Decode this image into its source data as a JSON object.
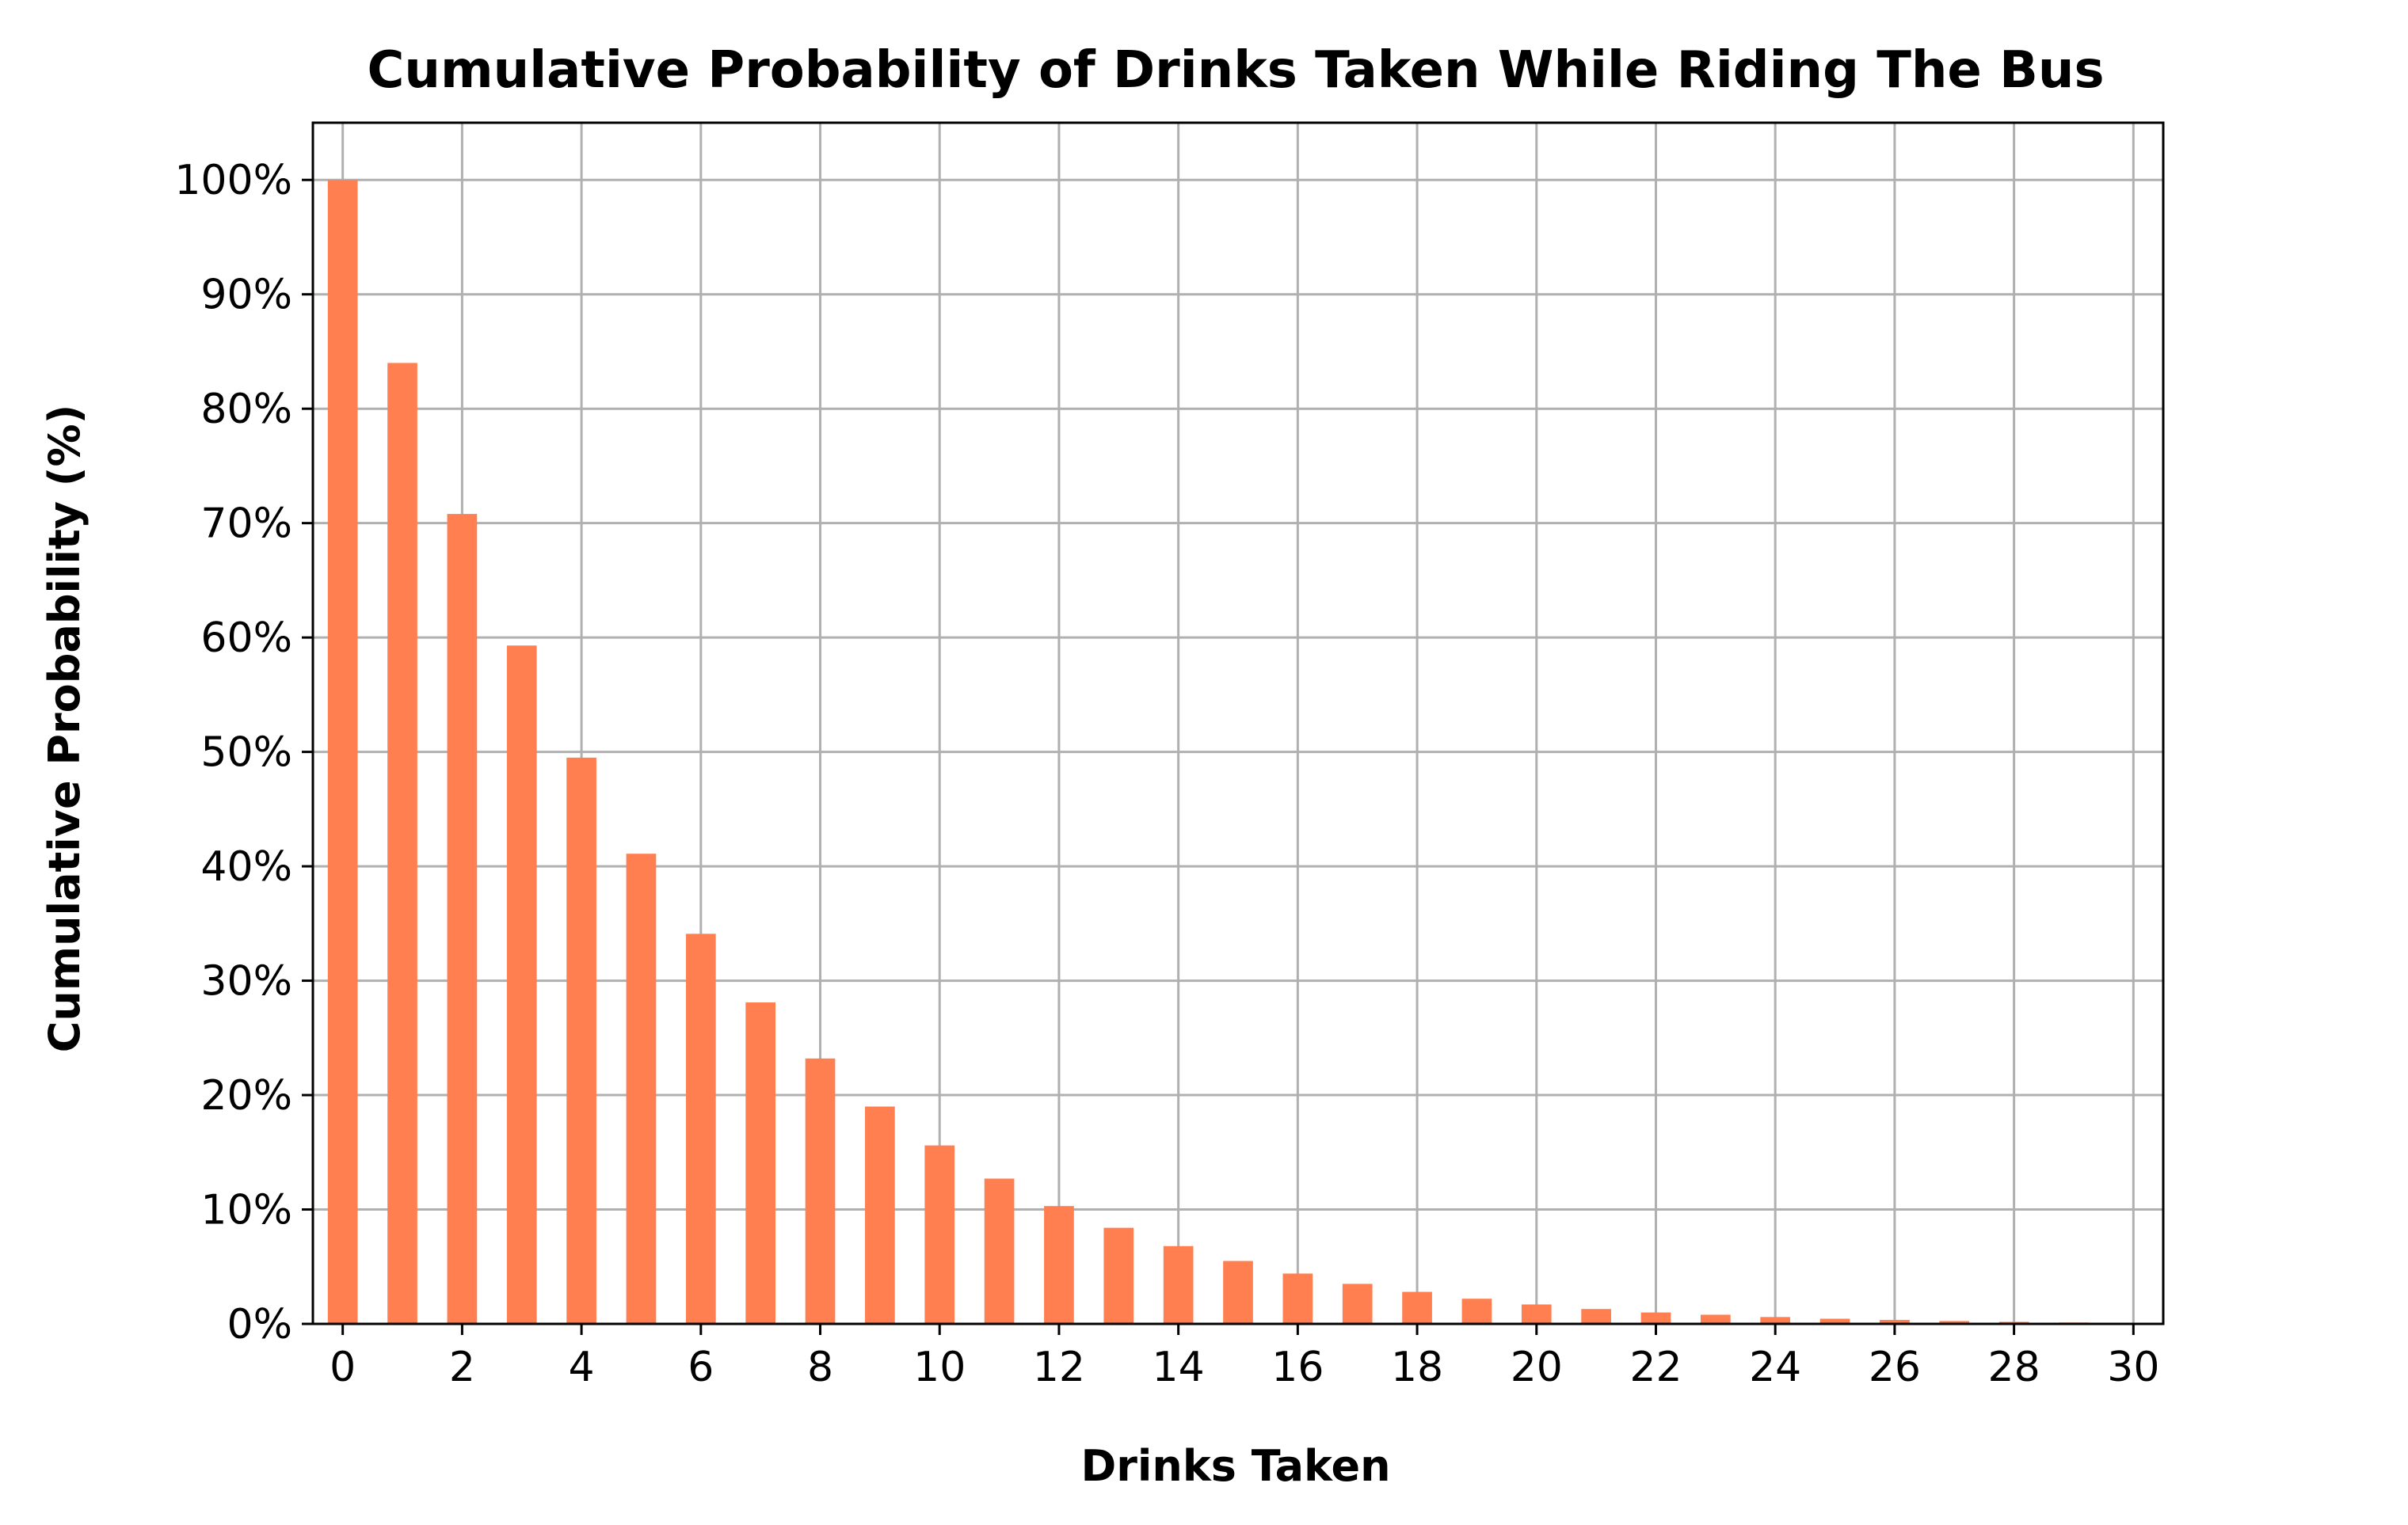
{
  "chart_data": {
    "type": "bar",
    "title": "Cumulative Probability of Drinks Taken While Riding The Bus",
    "xlabel": "Drinks Taken",
    "ylabel": "Cumulative Probability (%)",
    "x": [
      0,
      1,
      2,
      3,
      4,
      5,
      6,
      7,
      8,
      9,
      10,
      11,
      12,
      13,
      14,
      15,
      16,
      17,
      18,
      19,
      20,
      21,
      22,
      23,
      24,
      25,
      26,
      27,
      28,
      29
    ],
    "values": [
      100,
      84.0,
      70.8,
      59.3,
      49.5,
      41.1,
      34.1,
      28.1,
      23.2,
      19.0,
      15.6,
      12.7,
      10.3,
      8.4,
      6.8,
      5.5,
      4.4,
      3.5,
      2.8,
      2.2,
      1.7,
      1.3,
      1.0,
      0.8,
      0.6,
      0.45,
      0.35,
      0.25,
      0.18,
      0.12
    ],
    "xlim": [
      -0.5,
      30.5
    ],
    "ylim": [
      0,
      105
    ],
    "xticks": [
      0,
      2,
      4,
      6,
      8,
      10,
      12,
      14,
      16,
      18,
      20,
      22,
      24,
      26,
      28,
      30
    ],
    "xtick_labels": [
      "0",
      "2",
      "4",
      "6",
      "8",
      "10",
      "12",
      "14",
      "16",
      "18",
      "20",
      "22",
      "24",
      "26",
      "28",
      "30"
    ],
    "yticks": [
      0,
      10,
      20,
      30,
      40,
      50,
      60,
      70,
      80,
      90,
      100
    ],
    "ytick_labels": [
      "0%",
      "10%",
      "20%",
      "30%",
      "40%",
      "50%",
      "60%",
      "70%",
      "80%",
      "90%",
      "100%"
    ],
    "grid": true,
    "bar_color": "#ff7f50",
    "grid_color": "#b0b0b0"
  }
}
